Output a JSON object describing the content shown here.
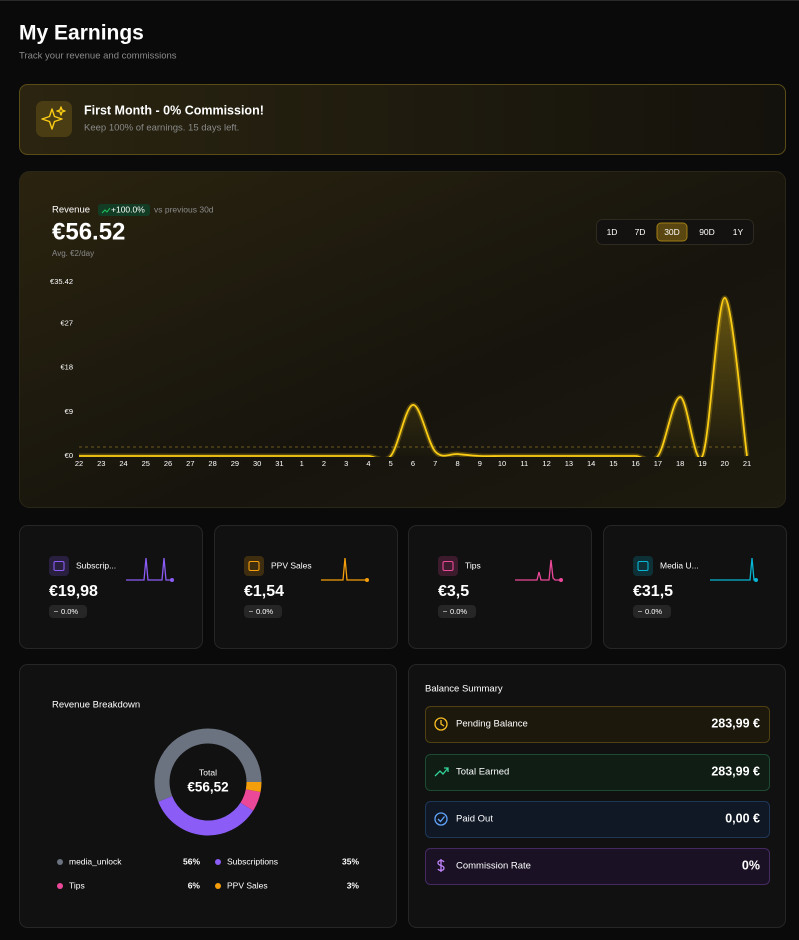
{
  "header": {
    "title": "My Earnings",
    "subtitle": "Track your revenue and commissions"
  },
  "promo": {
    "title": "First Month - 0% Commission!",
    "text": "Keep 100% of earnings. 15 days left."
  },
  "revenue": {
    "label": "Revenue",
    "change": "+100.0%",
    "comparison": "vs previous 30d",
    "total": "€56.52",
    "average": "Avg. €2/day",
    "ranges": [
      "1D",
      "7D",
      "30D",
      "90D",
      "1Y"
    ],
    "active_range": 2
  },
  "stats": [
    {
      "name": "Subscrip...",
      "value": "€19,98",
      "change": "0.0%",
      "color": "#8b5cf6"
    },
    {
      "name": "PPV Sales",
      "value": "€1,54",
      "change": "0.0%",
      "color": "#f59e0b"
    },
    {
      "name": "Tips",
      "value": "€3,5",
      "change": "0.0%",
      "color": "#ec4899"
    },
    {
      "name": "Media U...",
      "value": "€31,5",
      "change": "0.0%",
      "color": "#06b6d4"
    }
  ],
  "chart_data": [
    {
      "type": "line",
      "categories": [
        "22",
        "23",
        "24",
        "25",
        "26",
        "27",
        "28",
        "29",
        "30",
        "31",
        "1",
        "2",
        "3",
        "4",
        "5",
        "6",
        "7",
        "8",
        "9",
        "10",
        "11",
        "12",
        "13",
        "14",
        "15",
        "16",
        "17",
        "18",
        "19",
        "20",
        "21"
      ],
      "values": [
        0,
        0,
        0,
        0,
        0,
        0,
        0,
        0,
        0,
        0,
        0,
        0,
        0,
        0,
        0,
        10.4,
        0.9,
        0.4,
        0,
        0,
        0,
        0,
        0,
        0,
        0,
        0,
        0,
        12,
        0,
        32.2,
        0
      ],
      "color": "#facc15",
      "average": 1.82,
      "ylim": [
        0,
        35.42
      ],
      "yticks": [
        {
          "value": 0,
          "label": "€0"
        },
        {
          "value": 9,
          "label": "€9"
        },
        {
          "value": 18,
          "label": "€18"
        },
        {
          "value": 27,
          "label": "€27"
        },
        {
          "value": 35.42,
          "label": "€35.42"
        }
      ]
    },
    {
      "type": "pie",
      "title": "Revenue Breakdown",
      "center_label": "Total",
      "center_value": "€56,52",
      "categories": [
        "media_unlock",
        "Subscriptions",
        "Tips",
        "PPV Sales"
      ],
      "values": [
        56,
        35,
        6,
        3
      ],
      "value_labels": [
        "56%",
        "35%",
        "6%",
        "3%"
      ],
      "colors": [
        "#6b7280",
        "#8b5cf6",
        "#ec4899",
        "#f59e0b"
      ]
    }
  ],
  "balance": {
    "title": "Balance Summary",
    "items": [
      {
        "label": "Pending Balance",
        "value": "283,99 €"
      },
      {
        "label": "Total Earned",
        "value": "283,99 €"
      },
      {
        "label": "Paid Out",
        "value": "0,00 €"
      },
      {
        "label": "Commission Rate",
        "value": "0%"
      }
    ]
  }
}
